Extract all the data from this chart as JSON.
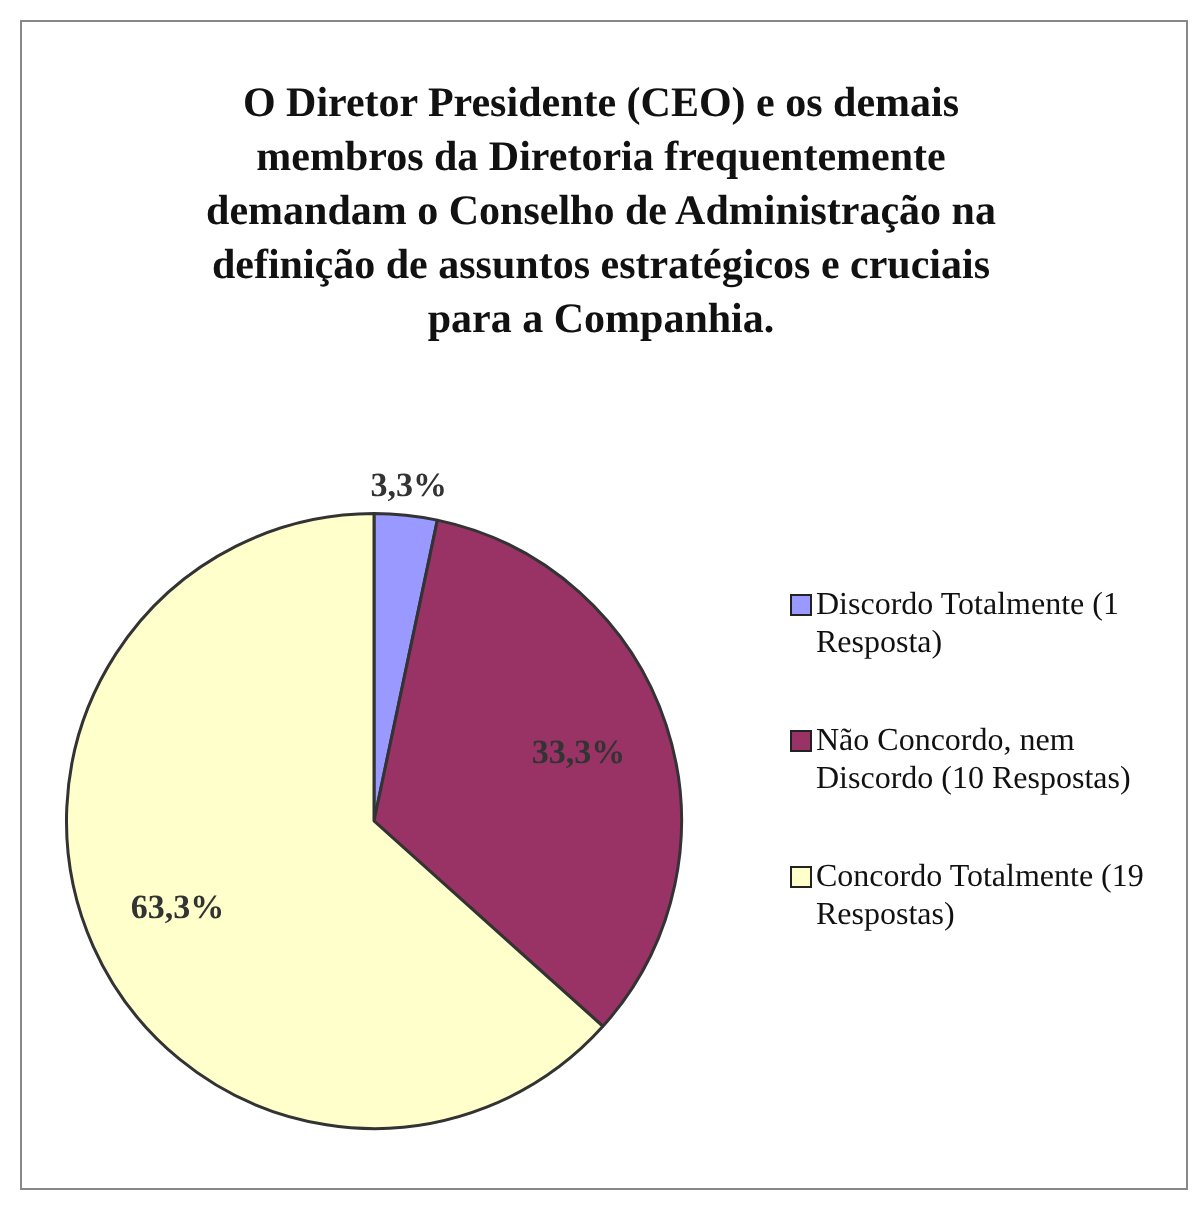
{
  "chart_data": {
    "type": "pie",
    "title": "O Diretor Presidente (CEO) e os demais membros da Diretoria frequentemente demandam o Conselho de Administração na definição de assuntos estratégicos e cruciais para a Companhia.",
    "categories": [
      "Discordo Totalmente (1 Resposta)",
      "Não Concordo, nem Discordo (10 Respostas)",
      "Concordo Totalmente (19 Respostas)"
    ],
    "values": [
      3.3,
      33.3,
      63.3
    ],
    "value_labels": [
      "3,3%",
      "33,3%",
      "63,3%"
    ],
    "colors": [
      "#9999ff",
      "#993366",
      "#ffffcc"
    ],
    "legend": "right"
  }
}
